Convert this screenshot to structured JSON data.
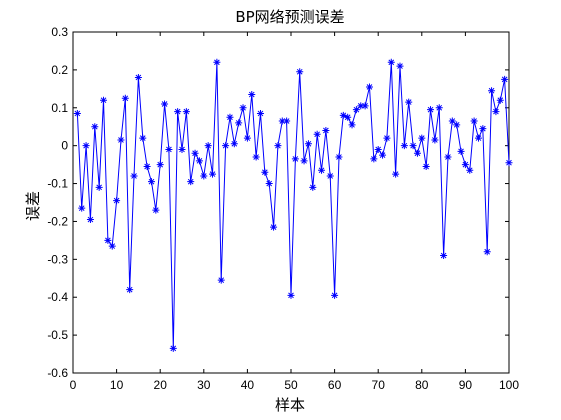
{
  "chart_data": {
    "type": "line",
    "title": "BP网络预测误差",
    "xlabel": "样本",
    "ylabel": "误差",
    "xlim": [
      0,
      100
    ],
    "ylim": [
      -0.6,
      0.3
    ],
    "xticks": [
      "0",
      "10",
      "20",
      "30",
      "40",
      "50",
      "60",
      "70",
      "80",
      "90",
      "100"
    ],
    "yticks": [
      "0.3",
      "0.2",
      "0.1",
      "0",
      "-0.1",
      "-0.2",
      "-0.3",
      "-0.4",
      "-0.5",
      "-0.6"
    ],
    "grid": false,
    "line_color": "#0000ff",
    "marker": "asterisk",
    "series": [
      {
        "x": [
          1,
          2,
          3,
          4,
          5,
          6,
          7,
          8,
          9,
          10,
          11,
          12,
          13,
          14,
          15,
          16,
          17,
          18,
          19,
          20,
          21,
          22,
          23,
          24,
          25,
          26,
          27,
          28,
          29,
          30,
          31,
          32,
          33,
          34,
          35,
          36,
          37,
          38,
          39,
          40,
          41,
          42,
          43,
          44,
          45,
          46,
          47,
          48,
          49,
          50,
          51,
          52,
          53,
          54,
          55,
          56,
          57,
          58,
          59,
          60,
          61,
          62,
          63,
          64,
          65,
          66,
          67,
          68,
          69,
          70,
          71,
          72,
          73,
          74,
          75,
          76,
          77,
          78,
          79,
          80,
          81,
          82,
          83,
          84,
          85,
          86,
          87,
          88,
          89,
          90,
          91,
          92,
          93,
          94,
          95,
          96,
          97,
          98,
          99,
          100
        ],
        "values": [
          0.085,
          -0.165,
          0.0,
          -0.195,
          0.05,
          -0.11,
          0.12,
          -0.25,
          -0.265,
          -0.145,
          0.015,
          0.125,
          -0.38,
          -0.08,
          0.18,
          0.02,
          -0.055,
          -0.095,
          -0.17,
          -0.05,
          0.11,
          -0.01,
          -0.535,
          0.09,
          -0.01,
          0.09,
          -0.095,
          -0.02,
          -0.04,
          -0.08,
          0.0,
          -0.075,
          0.22,
          -0.355,
          0.0,
          0.075,
          0.005,
          0.06,
          0.1,
          0.02,
          0.135,
          -0.03,
          0.085,
          -0.07,
          -0.1,
          -0.215,
          0.0,
          0.065,
          0.065,
          -0.395,
          -0.035,
          0.195,
          -0.04,
          0.005,
          -0.11,
          0.03,
          -0.065,
          0.04,
          -0.08,
          -0.395,
          -0.03,
          0.08,
          0.075,
          0.055,
          0.095,
          0.105,
          0.105,
          0.155,
          -0.035,
          -0.01,
          -0.025,
          0.02,
          0.22,
          -0.075,
          0.21,
          0.0,
          0.115,
          0.0,
          -0.02,
          0.02,
          -0.055,
          0.095,
          0.015,
          0.1,
          -0.29,
          -0.03,
          0.065,
          0.055,
          -0.015,
          -0.05,
          -0.065,
          0.065,
          0.02,
          0.045,
          -0.28,
          0.145,
          0.09,
          0.12,
          0.175,
          -0.045
        ]
      }
    ]
  }
}
